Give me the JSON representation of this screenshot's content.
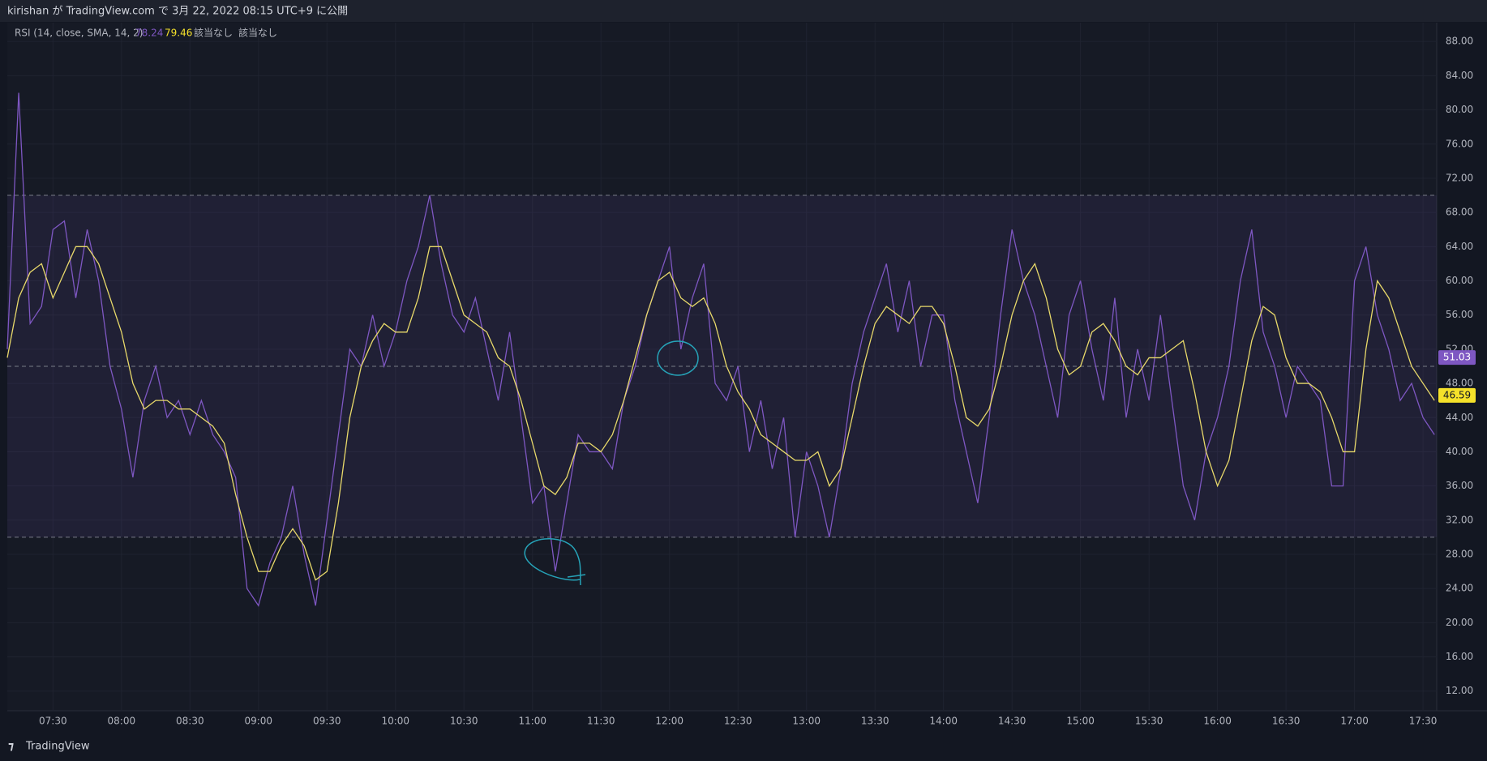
{
  "header": {
    "title": "kirishan が TradingView.com で 3月 22, 2022 08:15 UTC+9 に公開"
  },
  "footer": {
    "brand": "TradingView"
  },
  "chart_data": {
    "type": "line",
    "legend": {
      "title": "RSI (14, close, SMA, 14, 2)",
      "values": [
        "78.24",
        "79.46",
        "該当なし",
        "該当なし"
      ]
    },
    "x": [
      "07:10",
      "07:15",
      "07:20",
      "07:25",
      "07:30",
      "07:35",
      "07:40",
      "07:45",
      "07:50",
      "07:55",
      "08:00",
      "08:05",
      "08:10",
      "08:15",
      "08:20",
      "08:25",
      "08:30",
      "08:35",
      "08:40",
      "08:45",
      "08:50",
      "08:55",
      "09:00",
      "09:05",
      "09:10",
      "09:15",
      "09:20",
      "09:25",
      "09:30",
      "09:35",
      "09:40",
      "09:45",
      "09:50",
      "09:55",
      "10:00",
      "10:05",
      "10:10",
      "10:15",
      "10:20",
      "10:25",
      "10:30",
      "10:35",
      "10:40",
      "10:45",
      "10:50",
      "10:55",
      "11:00",
      "11:05",
      "11:10",
      "11:15",
      "11:20",
      "11:25",
      "11:30",
      "11:35",
      "11:40",
      "11:45",
      "11:50",
      "11:55",
      "12:00",
      "12:05",
      "12:10",
      "12:15",
      "12:20",
      "12:25",
      "12:30",
      "12:35",
      "12:40",
      "12:45",
      "12:50",
      "12:55",
      "13:00",
      "13:05",
      "13:10",
      "13:15",
      "13:20",
      "13:25",
      "13:30",
      "13:35",
      "13:40",
      "13:45",
      "13:50",
      "13:55",
      "14:00",
      "14:05",
      "14:10",
      "14:15",
      "14:20",
      "14:25",
      "14:30",
      "14:35",
      "14:40",
      "14:45",
      "14:50",
      "14:55",
      "15:00",
      "15:05",
      "15:10",
      "15:15",
      "15:20",
      "15:25",
      "15:30",
      "15:35",
      "15:40",
      "15:45",
      "15:50",
      "15:55",
      "16:00",
      "16:05",
      "16:10",
      "16:15",
      "16:20",
      "16:25",
      "16:30",
      "16:35",
      "16:40",
      "16:45",
      "16:50",
      "16:55",
      "17:00",
      "17:05",
      "17:10",
      "17:15",
      "17:20",
      "17:25",
      "17:30",
      "17:35"
    ],
    "series": [
      {
        "name": "RSI",
        "color": "#7e57c2",
        "values": [
          52,
          82,
          55,
          57,
          66,
          67,
          58,
          66,
          60,
          50,
          45,
          37,
          46,
          50,
          44,
          46,
          42,
          46,
          42,
          40,
          37,
          24,
          22,
          27,
          30,
          36,
          28,
          22,
          32,
          42,
          52,
          50,
          56,
          50,
          54,
          60,
          64,
          70,
          62,
          56,
          54,
          58,
          52,
          46,
          54,
          44,
          34,
          36,
          26,
          34,
          42,
          40,
          40,
          38,
          46,
          50,
          56,
          60,
          64,
          52,
          58,
          62,
          48,
          46,
          50,
          40,
          46,
          38,
          44,
          30,
          40,
          36,
          30,
          38,
          48,
          54,
          58,
          62,
          54,
          60,
          50,
          56,
          56,
          46,
          40,
          34,
          44,
          56,
          66,
          60,
          56,
          50,
          44,
          56,
          60,
          52,
          46,
          58,
          44,
          52,
          46,
          56,
          46,
          36,
          32,
          40,
          44,
          50,
          60,
          66,
          54,
          50,
          44,
          50,
          48,
          46,
          36,
          36,
          60,
          64,
          56,
          52,
          46,
          48,
          44,
          42
        ]
      },
      {
        "name": "SMA",
        "color": "#e8d96a",
        "values": [
          51,
          58,
          61,
          62,
          58,
          61,
          64,
          64,
          62,
          58,
          54,
          48,
          45,
          46,
          46,
          45,
          45,
          44,
          43,
          41,
          35,
          30,
          26,
          26,
          29,
          31,
          29,
          25,
          26,
          34,
          44,
          50,
          53,
          55,
          54,
          54,
          58,
          64,
          64,
          60,
          56,
          55,
          54,
          51,
          50,
          46,
          41,
          36,
          35,
          37,
          41,
          41,
          40,
          42,
          46,
          51,
          56,
          60,
          61,
          58,
          57,
          58,
          55,
          50,
          47,
          45,
          42,
          41,
          40,
          39,
          39,
          40,
          36,
          38,
          44,
          50,
          55,
          57,
          56,
          55,
          57,
          57,
          55,
          50,
          44,
          43,
          45,
          50,
          56,
          60,
          62,
          58,
          52,
          49,
          50,
          54,
          55,
          53,
          50,
          49,
          51,
          51,
          52,
          53,
          47,
          40,
          36,
          39,
          46,
          53,
          57,
          56,
          51,
          48,
          48,
          47,
          44,
          40,
          40,
          52,
          60,
          58,
          54,
          50,
          48,
          46
        ]
      }
    ],
    "bands": {
      "upper": 70,
      "middle": 50,
      "lower": 30,
      "color": "#7e57c2"
    },
    "price_labels": [
      {
        "value": 51.03,
        "color": "#7e57c2"
      },
      {
        "value": 46.59,
        "color": "#f5e12a"
      }
    ],
    "xlim": [
      "07:10",
      "17:36"
    ],
    "xticks": [
      "07:30",
      "08:00",
      "08:30",
      "09:00",
      "09:30",
      "10:00",
      "10:30",
      "11:00",
      "11:30",
      "12:00",
      "12:30",
      "13:00",
      "13:30",
      "14:00",
      "14:30",
      "15:00",
      "15:30",
      "16:00",
      "16:30",
      "17:00",
      "17:30"
    ],
    "ylim": [
      9.7,
      90.2
    ],
    "yticks": [
      {
        "value": 12,
        "label": "12.00"
      },
      {
        "value": 16,
        "label": "16.00"
      },
      {
        "value": 20,
        "label": "20.00"
      },
      {
        "value": 24,
        "label": "24.00"
      },
      {
        "value": 28,
        "label": "28.00"
      },
      {
        "value": 32,
        "label": "32.00"
      },
      {
        "value": 36,
        "label": "36.00"
      },
      {
        "value": 40,
        "label": "40.00"
      },
      {
        "value": 44,
        "label": "44.00"
      },
      {
        "value": 48,
        "label": "48.00"
      },
      {
        "value": 52,
        "label": "52.00"
      },
      {
        "value": 56,
        "label": "56.00"
      },
      {
        "value": 60,
        "label": "60.00"
      },
      {
        "value": 64,
        "label": "64.00"
      },
      {
        "value": 68,
        "label": "68.00"
      },
      {
        "value": 72,
        "label": "72.00"
      },
      {
        "value": 76,
        "label": "76.00"
      },
      {
        "value": 80,
        "label": "80.00"
      },
      {
        "value": 84,
        "label": "84.00"
      },
      {
        "value": 88,
        "label": "88.00"
      }
    ],
    "grid": true
  }
}
